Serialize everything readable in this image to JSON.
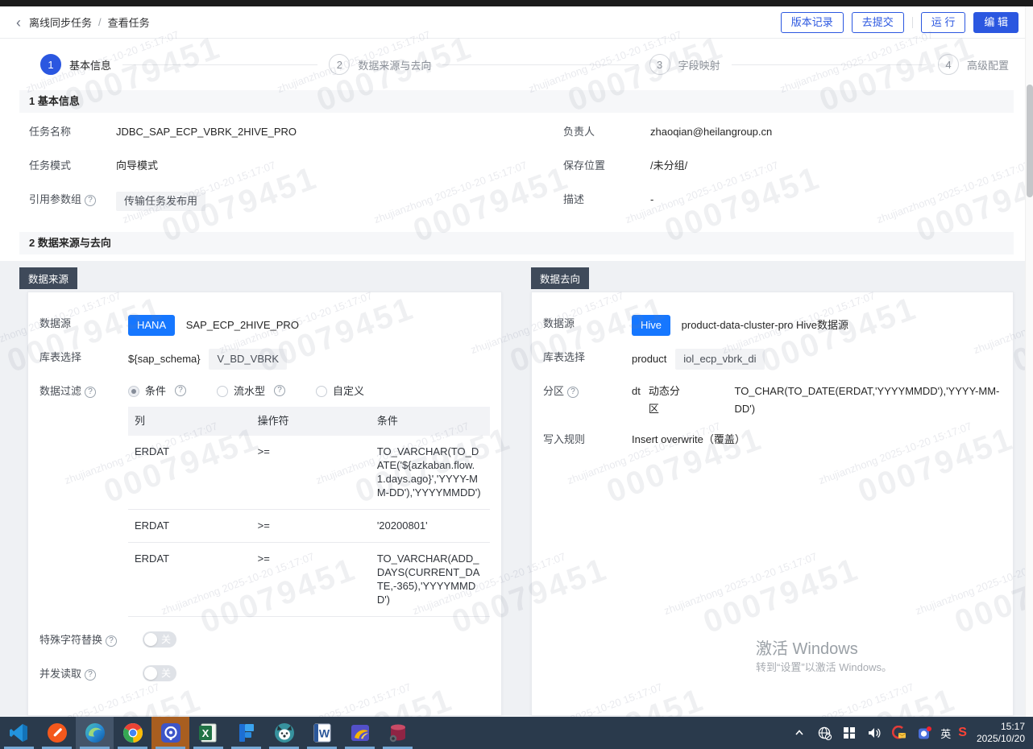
{
  "ui": {
    "help": "?",
    "back_icon": "‹",
    "crumb_sep": "/"
  },
  "header": {
    "crumb1": "离线同步任务",
    "crumb2": "查看任务",
    "btn_version": "版本记录",
    "btn_submit": "去提交",
    "btn_run": "运 行",
    "btn_edit": "编 辑"
  },
  "stepper": {
    "steps": [
      {
        "num": "1",
        "label": "基本信息"
      },
      {
        "num": "2",
        "label": "数据来源与去向"
      },
      {
        "num": "3",
        "label": "字段映射"
      },
      {
        "num": "4",
        "label": "高级配置"
      }
    ]
  },
  "basic": {
    "section_title": "1 基本信息",
    "task_name_label": "任务名称",
    "task_name": "JDBC_SAP_ECP_VBRK_2HIVE_PRO",
    "owner_label": "负责人",
    "owner": "zhaoqian@heilangroup.cn",
    "mode_label": "任务模式",
    "mode": "向导模式",
    "location_label": "保存位置",
    "location": "/未分组/",
    "param_group_label": "引用参数组",
    "param_group": "传输任务发布用",
    "desc_label": "描述",
    "desc": "-"
  },
  "section2": {
    "title": "2 数据来源与去向",
    "source": {
      "tag": "数据来源",
      "datasource_label": "数据源",
      "datasource_type": "HANA",
      "datasource_name": "SAP_ECP_2HIVE_PRO",
      "table_label": "库表选择",
      "schema": "${sap_schema}",
      "table": "V_BD_VBRK",
      "filter_label": "数据过滤",
      "radio_condition": "条件",
      "radio_stream": "流水型",
      "radio_custom": "自定义",
      "col_header": "列",
      "op_header": "操作符",
      "cond_header": "条件",
      "rows": [
        {
          "col": "ERDAT",
          "op": ">=",
          "cond": "TO_VARCHAR(TO_DATE('${azkaban.flow.1.days.ago}','YYYY-MM-DD'),'YYYYMMDD')"
        },
        {
          "col": "ERDAT",
          "op": ">=",
          "cond": "'20200801'"
        },
        {
          "col": "ERDAT",
          "op": ">=",
          "cond": "TO_VARCHAR(ADD_DAYS(CURRENT_DATE,-365),'YYYYMMDD')"
        }
      ],
      "special_char_label": "特殊字符替换",
      "special_char_state": "关",
      "concurrent_label": "并发读取",
      "concurrent_state": "关"
    },
    "target": {
      "tag": "数据去向",
      "datasource_label": "数据源",
      "datasource_type": "Hive",
      "datasource_name": "product-data-cluster-pro Hive数据源",
      "table_label": "库表选择",
      "db": "product",
      "table": "iol_ecp_vbrk_di",
      "partition_label": "分区",
      "partition_field": "dt",
      "partition_type": "动态分区",
      "partition_expr": "TO_CHAR(TO_DATE(ERDAT,'YYYYMMDD'),'YYYY-MM-DD')",
      "write_rule_label": "写入规则",
      "write_rule": "Insert overwrite（覆盖）"
    }
  },
  "watermark": {
    "line1": "zhujianzhong 2025-10-20 15:17:07",
    "line2": "00079451"
  },
  "activation": {
    "line1": "激活 Windows",
    "line2": "转到“设置”以激活 Windows。"
  },
  "taskbar": {
    "ime": "英",
    "sogou": "S",
    "time": "15:17",
    "date": "2025/10/20"
  },
  "colors": {
    "accent": "#2b57e0",
    "tag_blue": "#1677ff",
    "panel_tag": "#3f4a5a",
    "taskbar_bg": "#2a3a4c"
  }
}
